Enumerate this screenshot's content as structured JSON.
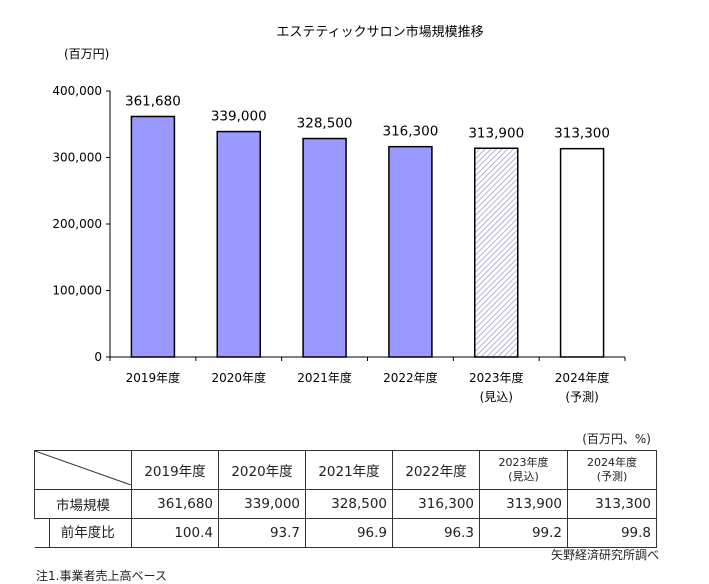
{
  "chart_data": {
    "type": "bar",
    "title": "エステティックサロン市場規模推移",
    "ylabel": "(百万円)",
    "ylim": [
      0,
      400000
    ],
    "yticks": [
      "0",
      "100,000",
      "200,000",
      "300,000",
      "400,000"
    ],
    "categories": [
      [
        "2019年度",
        ""
      ],
      [
        "2020年度",
        ""
      ],
      [
        "2021年度",
        ""
      ],
      [
        "2022年度",
        ""
      ],
      [
        "2023年度",
        "(見込)"
      ],
      [
        "2024年度",
        "(予測)"
      ]
    ],
    "values": [
      361680,
      339000,
      328500,
      316300,
      313900,
      313300
    ],
    "labels": [
      "361,680",
      "339,000",
      "328,500",
      "316,300",
      "313,900",
      "313,300"
    ],
    "styles": [
      "solid",
      "solid",
      "solid",
      "solid",
      "hatched",
      "empty"
    ],
    "colors": {
      "bar": "#9999ff",
      "hatch": "#9999cc"
    }
  },
  "table": {
    "unit": "(百万円、%)",
    "headers": [
      [
        "2019年度",
        ""
      ],
      [
        "2020年度",
        ""
      ],
      [
        "2021年度",
        ""
      ],
      [
        "2022年度",
        ""
      ],
      [
        "2023年度",
        "(見込)"
      ],
      [
        "2024年度",
        "(予測)"
      ]
    ],
    "rows": [
      {
        "label": "市場規模",
        "values": [
          "361,680",
          "339,000",
          "328,500",
          "316,300",
          "313,900",
          "313,300"
        ]
      },
      {
        "label": "前年度比",
        "values": [
          "100.4",
          "93.7",
          "96.9",
          "96.3",
          "99.2",
          "99.8"
        ]
      }
    ]
  },
  "source": "矢野経済研究所調べ",
  "note": "注1.事業者売上高ベース"
}
